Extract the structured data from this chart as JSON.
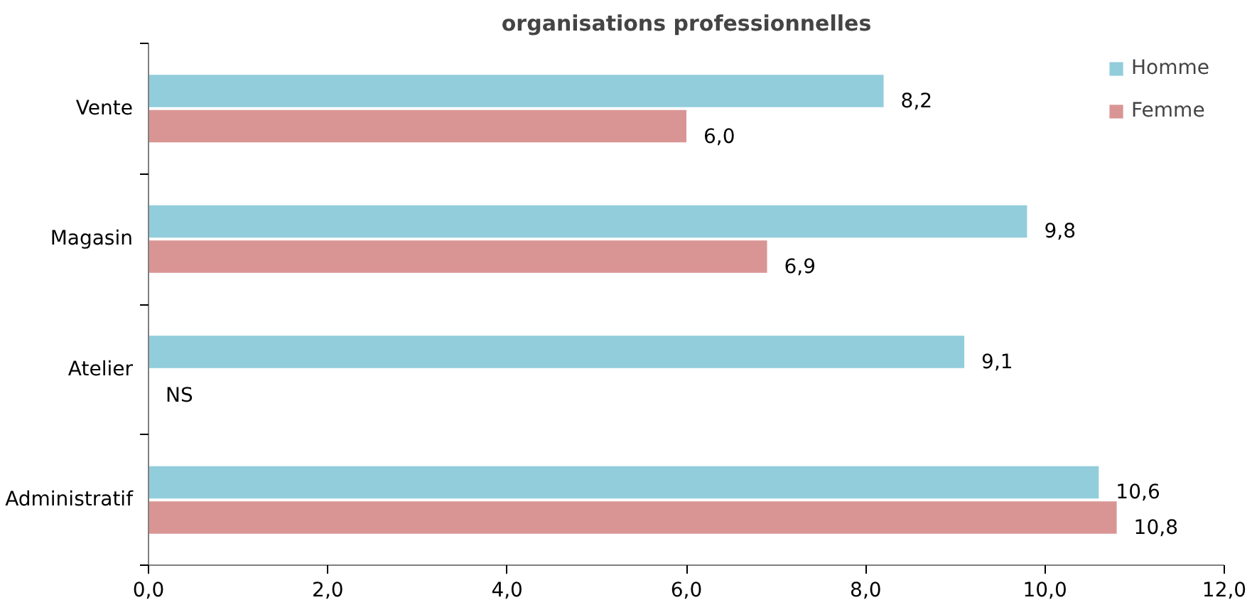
{
  "chart_data": {
    "type": "bar",
    "orientation": "horizontal",
    "title": "organisations professionnelles",
    "categories": [
      "Vente",
      "Magasin",
      "Atelier",
      "Administratif"
    ],
    "series": [
      {
        "name": "Homme",
        "color": "#92cddc",
        "values": [
          8.2,
          9.8,
          9.1,
          10.6
        ],
        "value_labels": [
          "8,2",
          "9,8",
          "9,1",
          "10,6"
        ]
      },
      {
        "name": "Femme",
        "color": "#d99594",
        "values": [
          6.0,
          6.9,
          null,
          10.8
        ],
        "value_labels": [
          "6,0",
          "6,9",
          "NS",
          "10,8"
        ]
      }
    ],
    "xlim": [
      0,
      12
    ],
    "xticks": [
      {
        "value": 0,
        "label": "0,0"
      },
      {
        "value": 2,
        "label": "2,0"
      },
      {
        "value": 4,
        "label": "4,0"
      },
      {
        "value": 6,
        "label": "6,0"
      },
      {
        "value": 8,
        "label": "8,0"
      },
      {
        "value": 10,
        "label": "10,0"
      },
      {
        "value": 12,
        "label": "12,0"
      }
    ],
    "grid": false,
    "legend": "top right"
  }
}
